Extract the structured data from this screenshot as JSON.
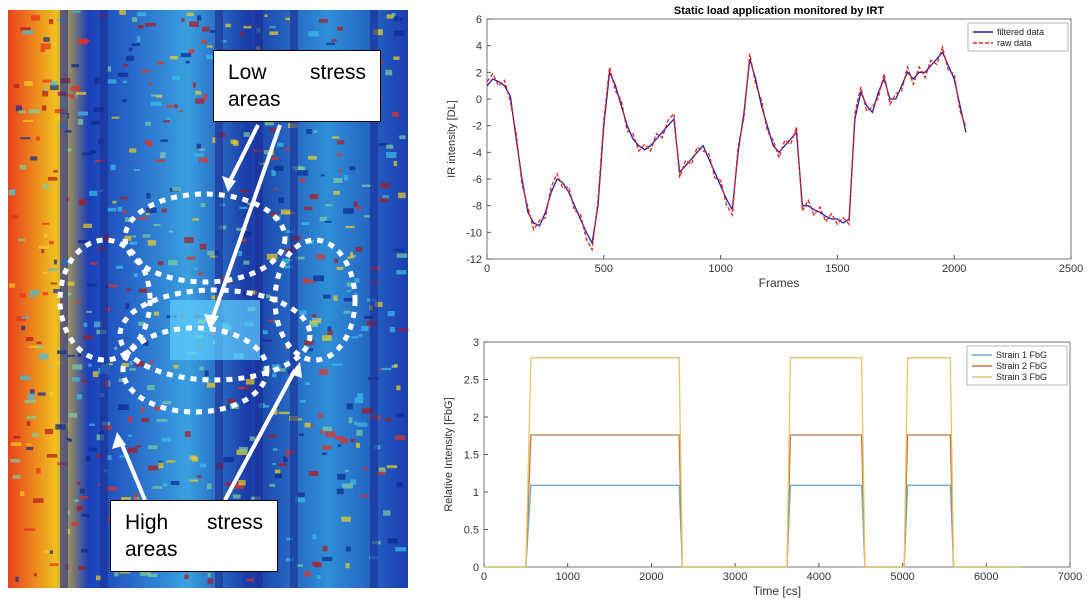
{
  "image": {
    "annotations": [
      "Low stress areas",
      "High stress areas"
    ]
  },
  "chart_data": [
    {
      "type": "line",
      "title": "Static load application monitored by IRT",
      "x_label": "Frames",
      "y_label": "IR intensity [DL]",
      "x": [
        0,
        25,
        50,
        75,
        100,
        125,
        150,
        175,
        200,
        225,
        250,
        275,
        300,
        325,
        350,
        375,
        400,
        425,
        450,
        475,
        500,
        525,
        550,
        575,
        600,
        625,
        650,
        675,
        700,
        725,
        750,
        775,
        800,
        825,
        850,
        875,
        900,
        925,
        950,
        975,
        1000,
        1025,
        1050,
        1075,
        1100,
        1125,
        1150,
        1175,
        1200,
        1225,
        1250,
        1275,
        1300,
        1325,
        1350,
        1375,
        1400,
        1425,
        1450,
        1475,
        1500,
        1525,
        1550,
        1575,
        1600,
        1625,
        1650,
        1675,
        1700,
        1725,
        1750,
        1775,
        1800,
        1825,
        1850,
        1875,
        1900,
        1925,
        1950,
        1975,
        2000,
        2025,
        2050
      ],
      "series": [
        {
          "name": "filtered data",
          "color": "#1f1fa8",
          "dash": false,
          "values": [
            1.0,
            1.5,
            1.3,
            1.0,
            0.2,
            -3,
            -6,
            -8.5,
            -9.3,
            -9.5,
            -8.5,
            -7,
            -6,
            -6.3,
            -7,
            -8,
            -9,
            -10,
            -10.8,
            -8,
            -2,
            2.0,
            1.0,
            -0.5,
            -2,
            -3.0,
            -3.5,
            -3.8,
            -3.5,
            -3.0,
            -2.5,
            -2.0,
            -1.5,
            -5.5,
            -5.0,
            -4.5,
            -4.0,
            -3.5,
            -4.5,
            -5.5,
            -6.5,
            -7.5,
            -8.3,
            -4,
            -1.0,
            3.0,
            1.5,
            -0.5,
            -2.0,
            -3.5,
            -4.0,
            -3.5,
            -3.0,
            -2.5,
            -8.0,
            -8.0,
            -8.3,
            -8.5,
            -8.8,
            -9.0,
            -9.0,
            -9.3,
            -9.0,
            -1.5,
            0.5,
            -0.5,
            -1.0,
            0.5,
            1.5,
            0.0,
            0.0,
            1.0,
            2.0,
            1.5,
            2.0,
            2.0,
            2.5,
            3.0,
            3.5,
            2.5,
            1.5,
            -0.5,
            -2.5
          ]
        },
        {
          "name": "raw data",
          "color": "#e8231f",
          "dash": true,
          "values": [
            1.3,
            1.9,
            1.0,
            1.4,
            -0.2,
            -2.6,
            -6.4,
            -8.1,
            -9.8,
            -9.1,
            -8.9,
            -6.6,
            -5.6,
            -6.7,
            -6.6,
            -8.4,
            -8.6,
            -10.5,
            -11.3,
            -7.6,
            -1.6,
            2.4,
            0.6,
            -0.1,
            -2.4,
            -2.6,
            -3.9,
            -3.4,
            -3.9,
            -2.6,
            -2.9,
            -1.6,
            -1.1,
            -5.9,
            -4.6,
            -4.9,
            -3.6,
            -3.9,
            -4.1,
            -5.9,
            -6.1,
            -7.9,
            -8.7,
            -3.6,
            -1.4,
            3.4,
            1.1,
            -0.1,
            -2.4,
            -3.1,
            -4.4,
            -3.1,
            -3.4,
            -2.1,
            -8.4,
            -7.6,
            -8.7,
            -8.1,
            -9.2,
            -8.6,
            -9.4,
            -8.9,
            -9.4,
            -1.1,
            0.9,
            -0.9,
            -0.6,
            0.1,
            1.9,
            -0.4,
            0.4,
            0.6,
            2.4,
            1.1,
            2.4,
            1.6,
            2.9,
            2.6,
            3.9,
            2.1,
            1.9,
            -0.9,
            -2.1
          ]
        }
      ],
      "xlim": [
        0,
        2500
      ],
      "xticks": [
        0,
        500,
        1000,
        1500,
        2000,
        2500
      ],
      "ylim": [
        -12,
        6
      ],
      "yticks": [
        -12,
        -10,
        -8,
        -6,
        -4,
        -2,
        0,
        2,
        4,
        6
      ],
      "legend": "upper right"
    },
    {
      "type": "line",
      "x_label": "Time [cs]",
      "y_label": "Relative Intensity [FbG]",
      "x": [
        0,
        500,
        560,
        2330,
        2370,
        3620,
        3660,
        4510,
        4550,
        5020,
        5060,
        5570,
        5610,
        6400
      ],
      "series": [
        {
          "name": "Strain 1 FbG",
          "color": "#6aaed0",
          "dash": false,
          "values": [
            0,
            0,
            1.09,
            1.09,
            0,
            0,
            1.09,
            1.09,
            0,
            0,
            1.09,
            1.09,
            0,
            0
          ]
        },
        {
          "name": "Strain 2 FbG",
          "color": "#c8743e",
          "dash": false,
          "values": [
            0,
            0,
            1.76,
            1.76,
            0,
            0,
            1.76,
            1.76,
            0,
            0,
            1.76,
            1.76,
            0,
            0
          ]
        },
        {
          "name": "Strain 3 FbG",
          "color": "#e6c46a",
          "dash": false,
          "values": [
            0,
            0,
            2.79,
            2.79,
            0,
            0,
            2.79,
            2.79,
            0,
            0,
            2.79,
            2.79,
            0,
            0
          ]
        }
      ],
      "xlim": [
        0,
        7000
      ],
      "xticks": [
        0,
        1000,
        2000,
        3000,
        4000,
        5000,
        6000,
        7000
      ],
      "ylim": [
        0,
        3
      ],
      "yticks": [
        0,
        0.5,
        1,
        1.5,
        2,
        2.5,
        3
      ],
      "legend": "upper right"
    }
  ]
}
